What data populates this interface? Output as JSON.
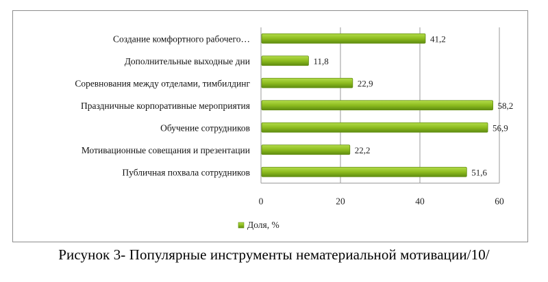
{
  "chart_data": {
    "type": "bar",
    "orientation": "horizontal",
    "categories": [
      "Создание комфортного рабочего…",
      "Дополнительные выходные дни",
      "Соревнования между отделами, тимбилдинг",
      "Праздничные корпоративные мероприятия",
      "Обучение сотрудников",
      "Мотивационные совещания и презентации",
      "Публичная похвала сотрудников"
    ],
    "series": [
      {
        "name": "Доля, %",
        "values": [
          41.2,
          11.8,
          22.9,
          58.2,
          56.9,
          22.2,
          51.6
        ],
        "labels": [
          "41,2",
          "11,8",
          "22,9",
          "58,2",
          "56,9",
          "22,2",
          "51,6"
        ],
        "color": "#8ebd1f"
      }
    ],
    "xlim": [
      0,
      60
    ],
    "xticks": [
      "0",
      "20",
      "40",
      "60"
    ],
    "xtick_values": [
      0,
      20,
      40,
      60
    ],
    "grid": true,
    "legend_position": "bottom"
  },
  "colors": {
    "bar_fill": "#8ebd1f",
    "bar_edge": "#5f8a0e",
    "gridline": "#9a9a9a"
  },
  "caption": "Рисунок 3- Популярные инструменты нематериальной мотивации/10/"
}
